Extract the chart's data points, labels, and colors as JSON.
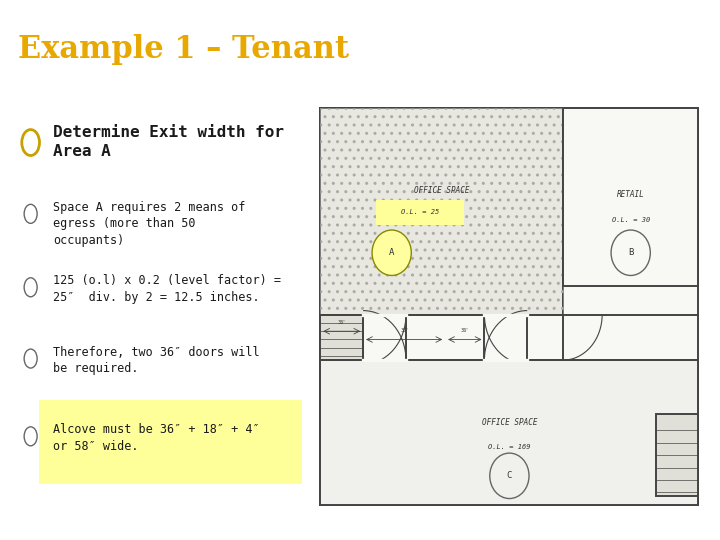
{
  "title": "Example 1 – Tenant",
  "title_color": "#e8a800",
  "title_bg": "#000000",
  "slide_bg": "#ffffff",
  "bullet_main_color": "#c8a000",
  "highlight_color": "#ffff99",
  "text_color": "#1a1a1a",
  "bullet_main": "Determine Exit width for\nArea A",
  "bullets": [
    "Space A requires 2 means of\negress (more than 50\noccupants)",
    "125 (o.l) x 0.2 (level factor) =\n25″  div. by 2 = 12.5 inches.",
    "Therefore, two 36″ doors will\nbe required.",
    "Alcove must be 36″ + 18″ + 4″\nor 58″ wide."
  ],
  "last_bullet_highlighted": true,
  "sep_color": "#aaaaaa",
  "wall_color": "#444444",
  "fp_bg": "#f8f8f4",
  "hatch_bg": "#e8e8e0",
  "lower_bg": "#f0f0ec"
}
